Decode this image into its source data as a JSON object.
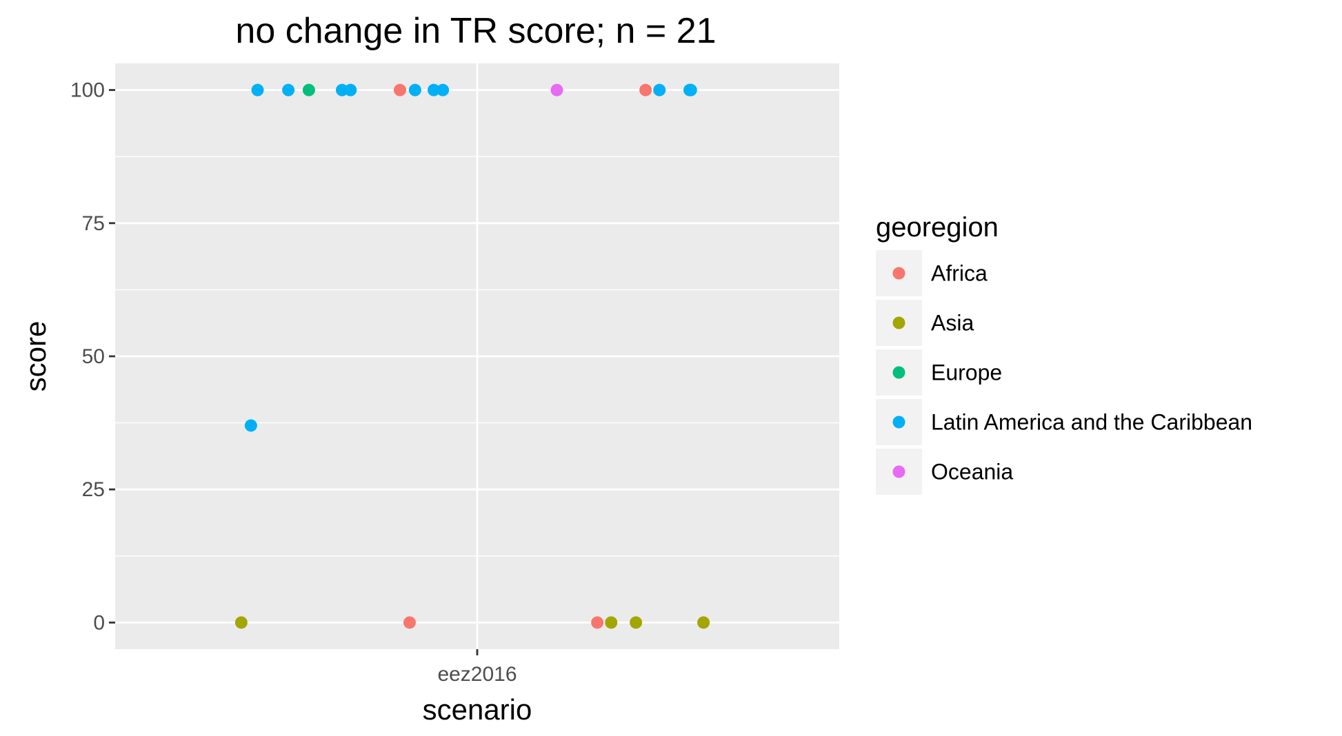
{
  "chart_data": {
    "type": "scatter",
    "title": "no change in TR score; n = 21",
    "xlabel": "scenario",
    "ylabel": "score",
    "x_categories": [
      "eez2016"
    ],
    "ylim": [
      -5,
      105
    ],
    "yticks": [
      0,
      25,
      50,
      75,
      100
    ],
    "grid": true,
    "legend_title": "georegion",
    "legend_position": "right",
    "series": [
      {
        "name": "Africa",
        "color": "#F8766D",
        "points": [
          {
            "jitter": -0.128,
            "y": 100
          },
          {
            "jitter": -0.112,
            "y": 0
          },
          {
            "jitter": 0.199,
            "y": 0
          },
          {
            "jitter": 0.279,
            "y": 100
          }
        ]
      },
      {
        "name": "Asia",
        "color": "#A3A500",
        "points": [
          {
            "jitter": -0.391,
            "y": 0
          },
          {
            "jitter": 0.222,
            "y": 0
          },
          {
            "jitter": 0.263,
            "y": 0
          },
          {
            "jitter": 0.375,
            "y": 0
          }
        ]
      },
      {
        "name": "Europe",
        "color": "#00BF7D",
        "points": [
          {
            "jitter": -0.279,
            "y": 100
          }
        ]
      },
      {
        "name": "Latin America and the Caribbean",
        "color": "#00B0F6",
        "points": [
          {
            "jitter": -0.375,
            "y": 37
          },
          {
            "jitter": -0.364,
            "y": 100
          },
          {
            "jitter": -0.313,
            "y": 100
          },
          {
            "jitter": -0.224,
            "y": 100
          },
          {
            "jitter": -0.21,
            "y": 100
          },
          {
            "jitter": -0.103,
            "y": 100
          },
          {
            "jitter": -0.072,
            "y": 100
          },
          {
            "jitter": -0.057,
            "y": 100
          },
          {
            "jitter": 0.302,
            "y": 100
          },
          {
            "jitter": 0.352,
            "y": 100
          },
          {
            "jitter": 0.354,
            "y": 100
          }
        ]
      },
      {
        "name": "Oceania",
        "color": "#E76BF3",
        "points": [
          {
            "jitter": 0.132,
            "y": 100
          }
        ]
      }
    ]
  }
}
